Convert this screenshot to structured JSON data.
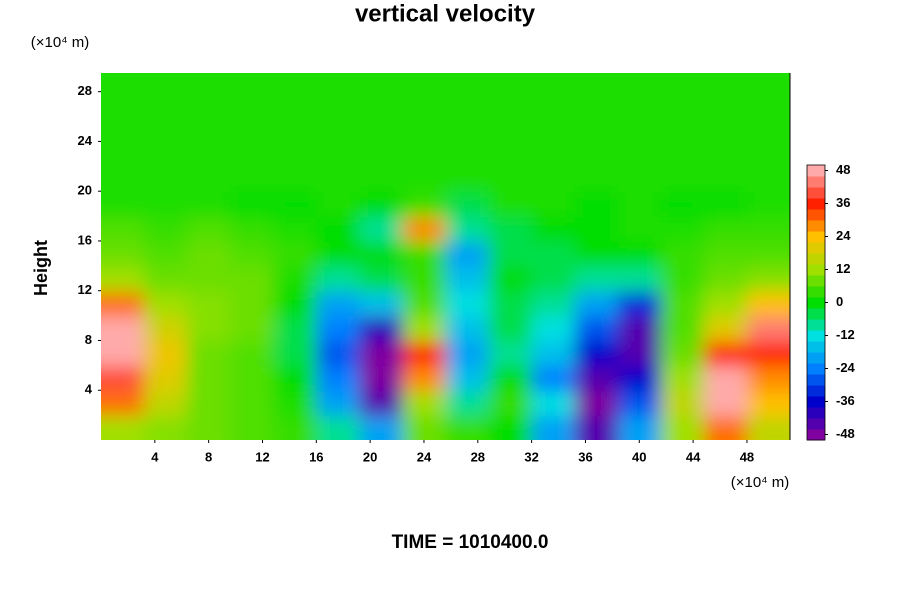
{
  "chart_data": {
    "type": "contour",
    "title": "vertical velocity",
    "y_label": "Height",
    "y_unit": "(×10⁴ m)",
    "x_unit": "(×10⁴ m)",
    "footer": "TIME = 1010400.0",
    "xlim": [
      0,
      51.2
    ],
    "ylim": [
      0,
      29.5
    ],
    "xticks": [
      4,
      8,
      12,
      16,
      20,
      24,
      28,
      32,
      36,
      40,
      44,
      48
    ],
    "yticks": [
      4,
      8,
      12,
      16,
      20,
      24,
      28
    ],
    "zlim": [
      -50,
      50
    ],
    "zticks": [
      48,
      36,
      24,
      12,
      0,
      -12,
      -24,
      -36,
      -48
    ],
    "colormap": [
      "#ffaaaa",
      "#ff2000",
      "#ffc000",
      "#a0e000",
      "#00dd00",
      "#00e0e0",
      "#0080ff",
      "#0000cc",
      "#8000a0"
    ],
    "x": [
      1.6,
      4.8,
      8,
      11.2,
      14.4,
      17.6,
      20.8,
      24,
      27.2,
      30.4,
      33.6,
      36.8,
      40,
      43.2,
      46.4,
      49.6
    ],
    "y": [
      1,
      3,
      5,
      7,
      9,
      11,
      13,
      15,
      17,
      19,
      21,
      23,
      25,
      27,
      29
    ],
    "z": [
      [
        12,
        10,
        8,
        6,
        4,
        -8,
        -20,
        8,
        4,
        0,
        -20,
        -44,
        -20,
        12,
        30,
        16
      ],
      [
        30,
        16,
        8,
        6,
        2,
        -20,
        -44,
        12,
        -8,
        4,
        -12,
        -48,
        -28,
        16,
        48,
        24
      ],
      [
        40,
        20,
        8,
        6,
        0,
        -24,
        -48,
        28,
        -16,
        0,
        -24,
        -44,
        -36,
        12,
        48,
        28
      ],
      [
        48,
        22,
        8,
        6,
        -4,
        -28,
        -48,
        36,
        -20,
        -8,
        -16,
        -36,
        -44,
        8,
        36,
        36
      ],
      [
        48,
        18,
        10,
        8,
        -4,
        -24,
        -40,
        12,
        -16,
        -4,
        -12,
        -28,
        -44,
        6,
        20,
        44
      ],
      [
        30,
        12,
        10,
        8,
        0,
        -20,
        -16,
        6,
        -12,
        -4,
        -8,
        -20,
        -32,
        6,
        12,
        24
      ],
      [
        12,
        8,
        8,
        8,
        2,
        -8,
        -4,
        4,
        -16,
        0,
        -4,
        -8,
        -8,
        4,
        8,
        10
      ],
      [
        8,
        6,
        8,
        6,
        4,
        0,
        0,
        4,
        -20,
        -4,
        -4,
        0,
        0,
        4,
        6,
        6
      ],
      [
        6,
        4,
        6,
        4,
        2,
        0,
        -8,
        28,
        -8,
        -4,
        0,
        0,
        2,
        2,
        4,
        4
      ],
      [
        2,
        2,
        2,
        0,
        0,
        2,
        0,
        4,
        -4,
        2,
        2,
        0,
        2,
        0,
        0,
        2
      ],
      [
        2,
        2,
        2,
        2,
        2,
        2,
        2,
        2,
        2,
        2,
        2,
        2,
        2,
        2,
        2,
        2
      ],
      [
        2,
        2,
        2,
        2,
        2,
        2,
        2,
        2,
        2,
        2,
        2,
        2,
        2,
        2,
        2,
        2
      ],
      [
        2,
        2,
        2,
        2,
        2,
        2,
        2,
        2,
        2,
        2,
        2,
        2,
        2,
        2,
        2,
        2
      ],
      [
        2,
        2,
        2,
        2,
        2,
        2,
        2,
        2,
        2,
        2,
        2,
        2,
        2,
        2,
        2,
        2
      ],
      [
        2,
        2,
        2,
        2,
        2,
        2,
        2,
        2,
        2,
        2,
        2,
        2,
        2,
        2,
        2,
        2
      ]
    ]
  }
}
